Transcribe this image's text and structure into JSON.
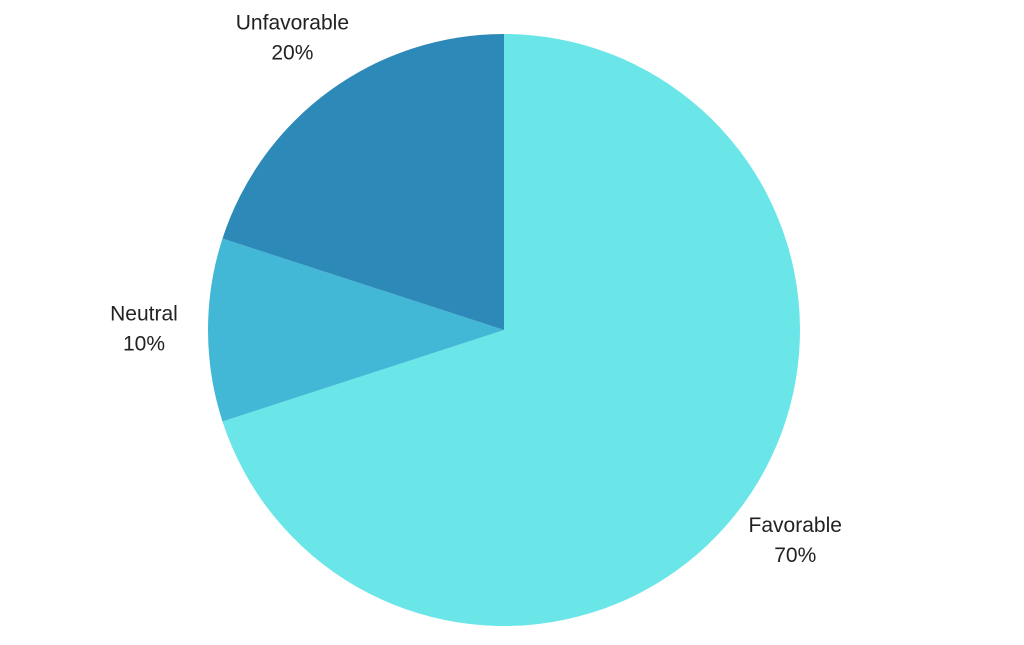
{
  "chart_data": {
    "type": "pie",
    "categories": [
      "Favorable",
      "Neutral",
      "Unfavorable"
    ],
    "values": [
      70,
      10,
      20
    ],
    "value_labels": [
      "70%",
      "10%",
      "20%"
    ],
    "colors": [
      "#6ae6e8",
      "#42b7d6",
      "#2d89b8"
    ]
  }
}
